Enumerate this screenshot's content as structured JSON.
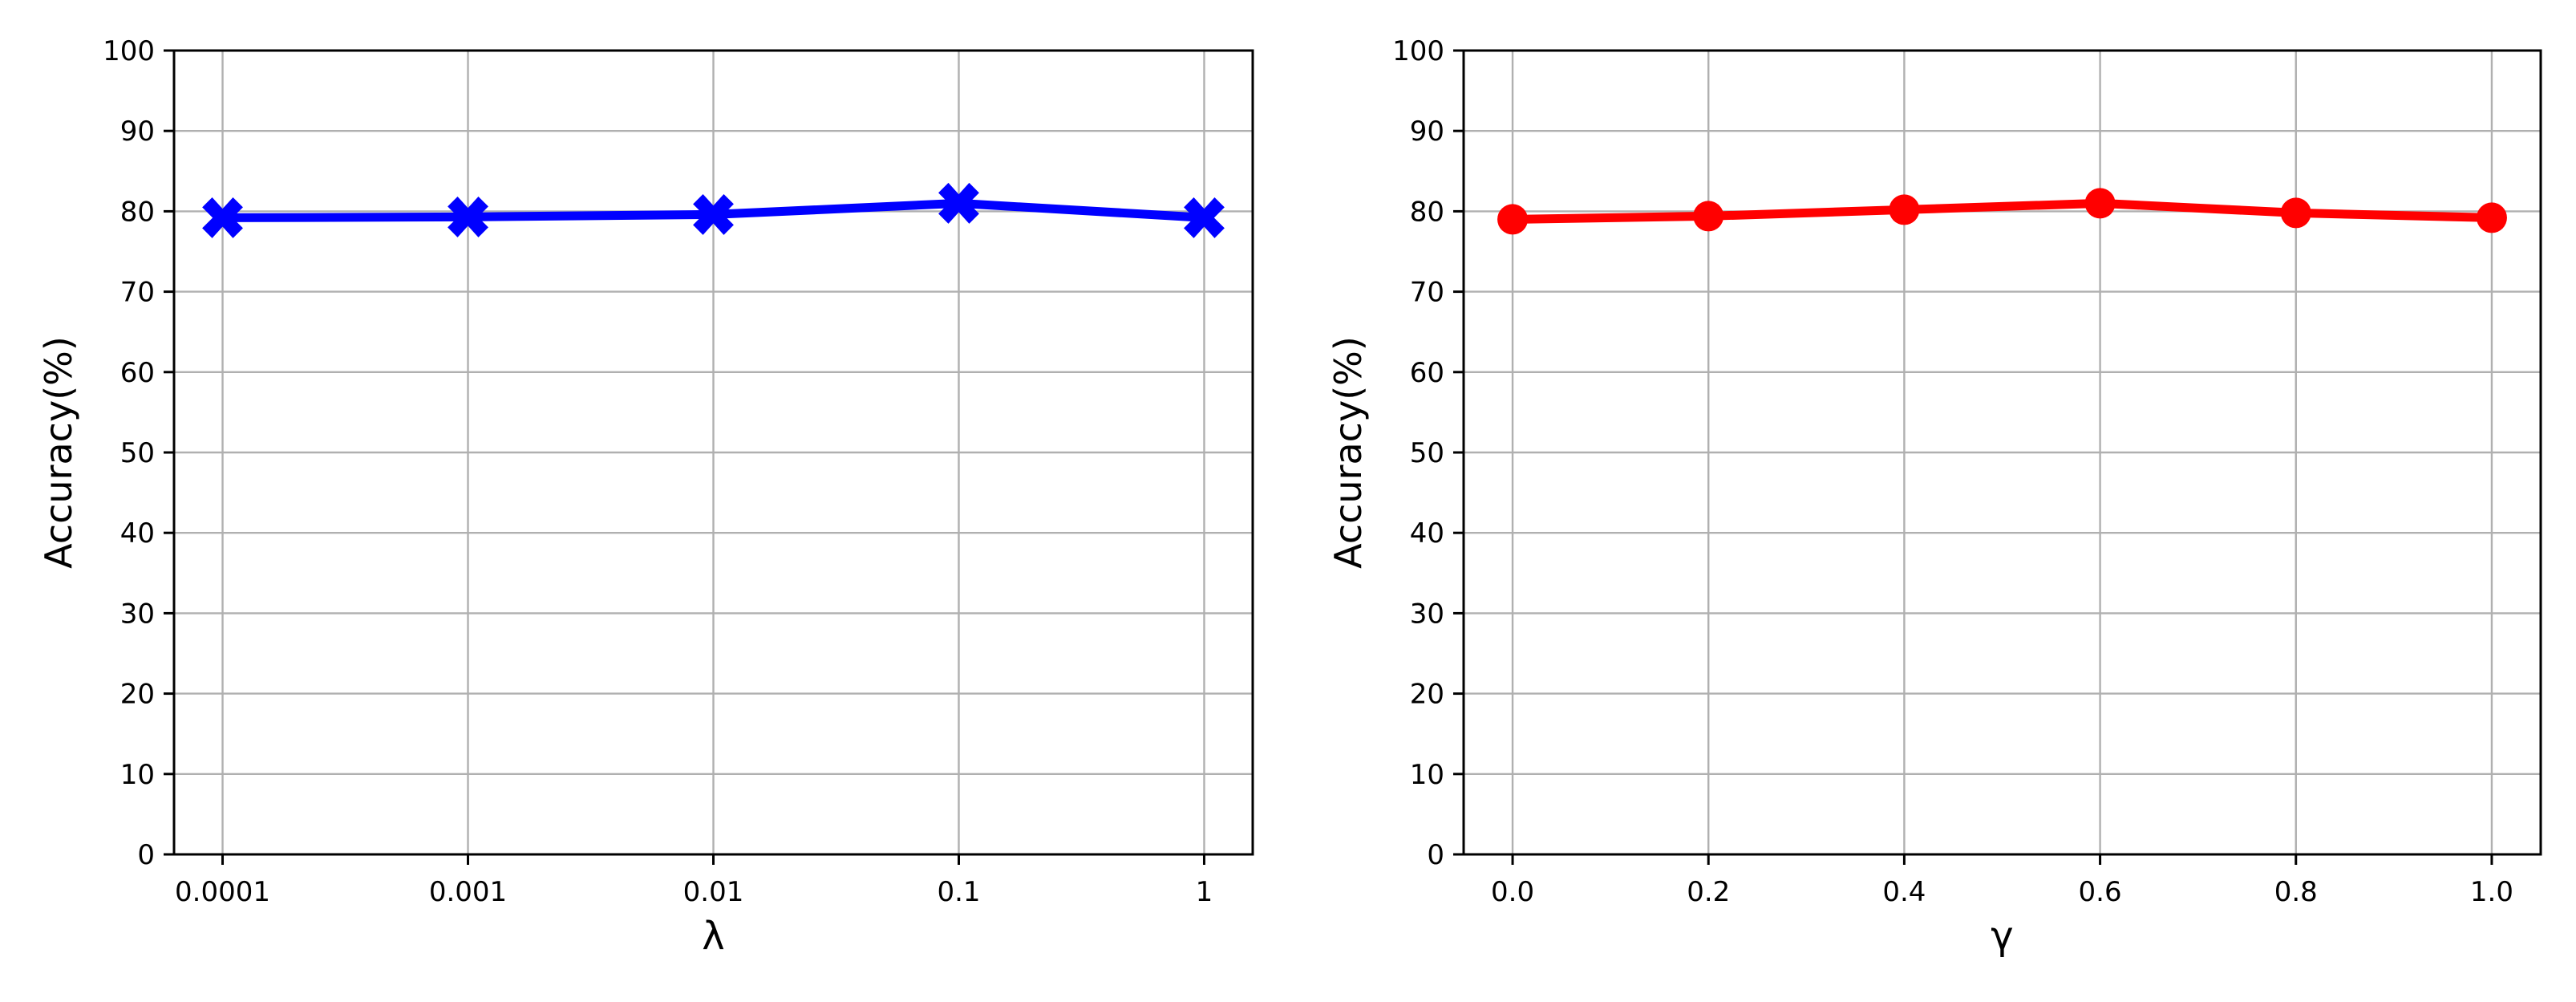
{
  "chart_data": [
    {
      "type": "line",
      "categories": [
        "0.0001",
        "0.001",
        "0.01",
        "0.1",
        "1"
      ],
      "series": [
        {
          "values": [
            79.2,
            79.3,
            79.6,
            81.0,
            79.2
          ]
        }
      ],
      "xlabel": "λ",
      "ylabel": "Accuracy(%)",
      "ylim": [
        0,
        100
      ],
      "yticks": [
        "0",
        "10",
        "20",
        "30",
        "40",
        "50",
        "60",
        "70",
        "80",
        "90",
        "100"
      ],
      "grid": true,
      "color": "#0000ff",
      "marker": "X"
    },
    {
      "type": "line",
      "x": [
        0.0,
        0.2,
        0.4,
        0.6,
        0.8,
        1.0
      ],
      "xtick_labels": [
        "0.0",
        "0.2",
        "0.4",
        "0.6",
        "0.8",
        "1.0"
      ],
      "series": [
        {
          "values": [
            79.0,
            79.4,
            80.2,
            81.0,
            79.8,
            79.2
          ]
        }
      ],
      "xlabel": "γ",
      "ylabel": "Accuracy(%)",
      "ylim": [
        0,
        100
      ],
      "xlim": [
        -0.05,
        1.05
      ],
      "yticks": [
        "0",
        "10",
        "20",
        "30",
        "40",
        "50",
        "60",
        "70",
        "80",
        "90",
        "100"
      ],
      "grid": true,
      "color": "#ff0000",
      "marker": "o"
    }
  ]
}
